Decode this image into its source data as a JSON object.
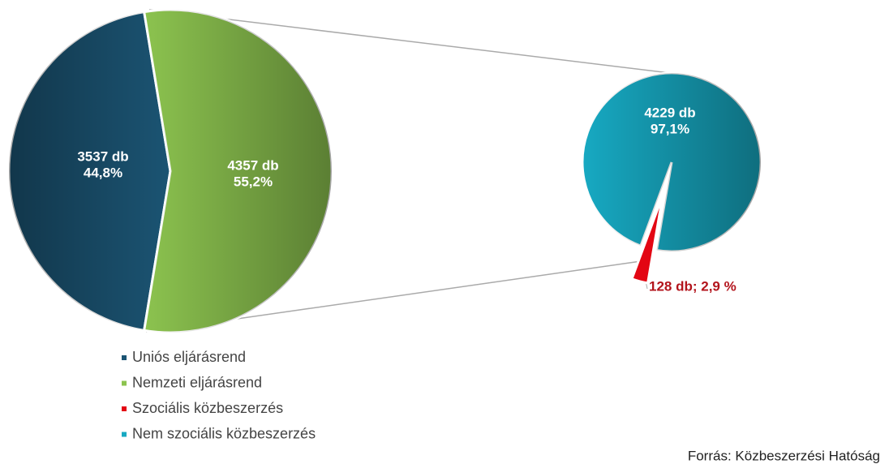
{
  "chart_data": [
    {
      "type": "pie",
      "categories": [
        "Uniós eljárásrend",
        "Nemzeti eljárásrend"
      ],
      "values": [
        3537,
        4357
      ],
      "value_labels": [
        [
          "3537 db",
          "44,8%"
        ],
        [
          "4357 db",
          "55,2%"
        ]
      ],
      "colors": [
        "#1b5473",
        "#8cc34f"
      ]
    },
    {
      "type": "pie",
      "categories": [
        "Szociális közbeszerzés",
        "Nem szociális közbeszerzés"
      ],
      "values": [
        128,
        4229
      ],
      "value_labels": [
        [
          "128 db; 2,9 %"
        ],
        [
          "4229 db",
          "97,1%"
        ]
      ],
      "colors": [
        "#e30613",
        "#17a9c2"
      ]
    }
  ],
  "source": "Forrás: Közbeszerzési Hatóság"
}
